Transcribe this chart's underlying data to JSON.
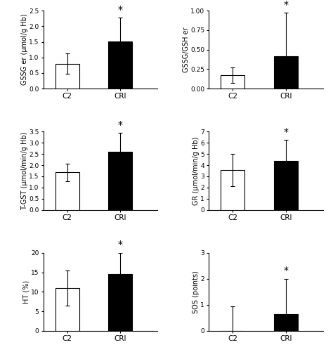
{
  "panels": [
    {
      "ylabel": "GSSG er (μmol/g Hb)",
      "categories": [
        "C2",
        "CRl"
      ],
      "values": [
        0.8,
        1.52
      ],
      "errors": [
        0.32,
        0.75
      ],
      "colors": [
        "white",
        "black"
      ],
      "ylim": [
        0,
        2.5
      ],
      "yticks": [
        0.0,
        0.5,
        1.0,
        1.5,
        2.0,
        2.5
      ],
      "yticklabels": [
        "0.0",
        "0.5",
        "1.0",
        "1.5",
        "2.0",
        "2.5"
      ]
    },
    {
      "ylabel": "GSSG/GSH er",
      "categories": [
        "C2",
        "CRl"
      ],
      "values": [
        0.17,
        0.42
      ],
      "errors": [
        0.1,
        0.55
      ],
      "colors": [
        "white",
        "black"
      ],
      "ylim": [
        0,
        1.0
      ],
      "yticks": [
        0.0,
        0.25,
        0.5,
        0.75,
        1.0
      ],
      "yticklabels": [
        "0.00",
        "0.25",
        "0.50",
        "0.75",
        "1.00"
      ]
    },
    {
      "ylabel": "T-GST (μmol/min/g Hb)",
      "categories": [
        "C2",
        "CRl"
      ],
      "values": [
        1.68,
        2.6
      ],
      "errors": [
        0.4,
        0.85
      ],
      "colors": [
        "white",
        "black"
      ],
      "ylim": [
        0,
        3.5
      ],
      "yticks": [
        0.0,
        0.5,
        1.0,
        1.5,
        2.0,
        2.5,
        3.0,
        3.5
      ],
      "yticklabels": [
        "0.0",
        "0.5",
        "1.0",
        "1.5",
        "2.0",
        "2.5",
        "3.0",
        "3.5"
      ]
    },
    {
      "ylabel": "GR (μmol/min/g Hb)",
      "categories": [
        "C2",
        "CRl"
      ],
      "values": [
        3.55,
        4.4
      ],
      "errors": [
        1.45,
        1.85
      ],
      "colors": [
        "white",
        "black"
      ],
      "ylim": [
        0,
        7
      ],
      "yticks": [
        0,
        1,
        2,
        3,
        4,
        5,
        6,
        7
      ],
      "yticklabels": [
        "0",
        "1",
        "2",
        "3",
        "4",
        "5",
        "6",
        "7"
      ]
    },
    {
      "ylabel": "HT (%)",
      "categories": [
        "C2",
        "CRl"
      ],
      "values": [
        10.9,
        14.5
      ],
      "errors": [
        4.5,
        5.5
      ],
      "colors": [
        "white",
        "black"
      ],
      "ylim": [
        0,
        20
      ],
      "yticks": [
        0,
        5,
        10,
        15,
        20
      ],
      "yticklabels": [
        "0",
        "5",
        "10",
        "15",
        "20"
      ]
    },
    {
      "ylabel": "SOS (points)",
      "categories": [
        "C2",
        "CRl"
      ],
      "values": [
        0.0,
        0.65
      ],
      "errors": [
        0.95,
        1.35
      ],
      "colors": [
        "white",
        "black"
      ],
      "ylim": [
        0,
        3
      ],
      "yticks": [
        0,
        1,
        2,
        3
      ],
      "yticklabels": [
        "0",
        "1",
        "2",
        "3"
      ]
    }
  ],
  "bar_width": 0.45,
  "edge_color": "black",
  "tick_fontsize": 6.5,
  "label_fontsize": 7,
  "cat_fontsize": 7.5,
  "star_fontsize": 10,
  "background_color": "white"
}
